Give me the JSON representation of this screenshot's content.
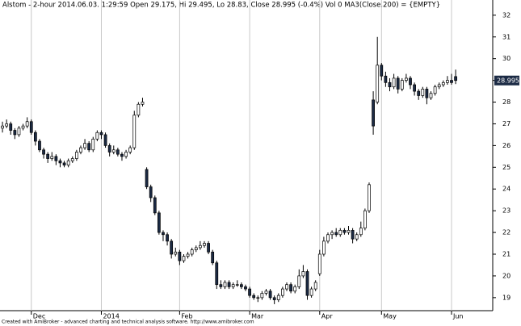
{
  "chart_data": {
    "type": "candlestick",
    "title": "Alstom - 2-hour 2014.06.03. 1:29:59 Open 29.175, Hi 29.495, Lo 28.83, Close 28.995 (-0.4%) Vol 0 MA3(Close,200) = {EMPTY}",
    "footer": "Created with AmiBroker - advanced charting and technical analysis software. http://www.amibroker.com",
    "up_color": "#ffffff",
    "down_color": "#1c2b45",
    "grid": true,
    "xlim": [
      -0.6,
      119
    ],
    "ylim": [
      18.4,
      32.7
    ],
    "yticks": [
      19,
      20,
      21,
      22,
      23,
      24,
      25,
      26,
      27,
      28,
      29,
      30,
      31,
      32
    ],
    "xticks": [
      {
        "value": 7,
        "label": "Dec"
      },
      {
        "value": 24,
        "label": "2014"
      },
      {
        "value": 43,
        "label": "Feb"
      },
      {
        "value": 60,
        "label": "Mar"
      },
      {
        "value": 77,
        "label": "Apr"
      },
      {
        "value": 92,
        "label": "May"
      },
      {
        "value": 109,
        "label": "Jun"
      }
    ],
    "open": [
      26.8,
      26.9,
      27.0,
      26.7,
      26.5,
      26.8,
      26.9,
      27.1,
      26.6,
      26.2,
      25.8,
      25.6,
      25.4,
      25.5,
      25.3,
      25.2,
      25.1,
      25.3,
      25.4,
      25.7,
      25.9,
      26.1,
      25.8,
      26.3,
      26.6,
      26.5,
      26.0,
      25.7,
      25.8,
      25.6,
      25.5,
      25.7,
      25.9,
      27.4,
      27.9,
      24.9,
      24.1,
      23.6,
      22.9,
      22.0,
      21.9,
      21.6,
      21.0,
      21.1,
      20.7,
      20.9,
      21.0,
      21.2,
      21.3,
      21.4,
      21.5,
      21.1,
      20.6,
      19.6,
      19.5,
      19.7,
      19.5,
      19.6,
      19.6,
      19.5,
      19.4,
      19.1,
      19.0,
      19.0,
      19.2,
      19.3,
      19.0,
      18.9,
      19.1,
      19.4,
      19.6,
      19.3,
      19.5,
      20.0,
      20.2,
      19.1,
      19.4,
      20.1,
      21.0,
      21.6,
      21.9,
      22.0,
      21.9,
      22.1,
      22.0,
      22.1,
      21.7,
      21.9,
      22.2,
      23.0,
      28.1,
      28.0,
      29.7,
      29.2,
      28.9,
      28.7,
      29.1,
      28.6,
      29.0,
      29.1,
      28.8,
      28.5,
      28.3,
      28.6,
      28.2,
      28.4,
      28.7,
      28.8,
      28.9,
      29.0,
      29.175
    ],
    "high": [
      27.1,
      27.2,
      27.1,
      26.8,
      26.9,
      27.0,
      27.3,
      27.2,
      26.7,
      26.3,
      25.9,
      25.7,
      25.7,
      25.6,
      25.4,
      25.3,
      25.4,
      25.5,
      25.8,
      26.0,
      26.3,
      26.2,
      26.4,
      26.7,
      26.7,
      26.6,
      26.1,
      26.0,
      25.9,
      25.7,
      25.8,
      26.0,
      27.6,
      28.0,
      28.2,
      25.0,
      24.2,
      23.7,
      23.0,
      22.1,
      22.0,
      21.7,
      21.3,
      21.2,
      21.0,
      21.1,
      21.3,
      21.4,
      21.6,
      21.6,
      21.6,
      21.2,
      20.7,
      19.8,
      19.8,
      19.8,
      19.7,
      19.8,
      19.7,
      19.6,
      19.5,
      19.2,
      19.1,
      19.3,
      19.4,
      19.4,
      19.1,
      19.2,
      19.5,
      19.7,
      19.7,
      19.6,
      20.3,
      20.5,
      20.3,
      19.5,
      19.8,
      21.2,
      21.8,
      22.0,
      22.1,
      22.2,
      22.2,
      22.2,
      22.3,
      22.2,
      22.0,
      22.5,
      23.1,
      24.3,
      28.5,
      31.0,
      29.8,
      29.4,
      29.1,
      29.3,
      29.2,
      29.1,
      29.3,
      29.2,
      28.9,
      28.6,
      28.7,
      28.7,
      28.5,
      28.8,
      28.9,
      29.0,
      29.2,
      29.3,
      29.495
    ],
    "low": [
      26.6,
      26.8,
      26.5,
      26.3,
      26.4,
      26.7,
      26.8,
      26.5,
      26.0,
      25.7,
      25.4,
      25.2,
      25.3,
      25.1,
      25.0,
      25.0,
      25.0,
      25.2,
      25.3,
      25.6,
      25.8,
      25.7,
      25.7,
      26.2,
      26.3,
      25.9,
      25.5,
      25.6,
      25.5,
      25.3,
      25.4,
      25.6,
      25.8,
      27.3,
      27.8,
      24.0,
      23.4,
      22.8,
      21.9,
      21.6,
      21.4,
      20.8,
      20.9,
      20.5,
      20.6,
      20.8,
      20.9,
      21.1,
      21.2,
      21.3,
      21.0,
      20.5,
      19.4,
      19.4,
      19.4,
      19.4,
      19.4,
      19.5,
      19.4,
      19.3,
      19.0,
      18.9,
      18.8,
      18.9,
      19.1,
      18.9,
      18.7,
      18.8,
      19.0,
      19.3,
      19.2,
      19.2,
      19.4,
      19.9,
      18.9,
      19.0,
      19.3,
      20.0,
      20.9,
      21.5,
      21.7,
      21.8,
      21.8,
      21.9,
      21.9,
      21.5,
      21.6,
      21.8,
      22.1,
      22.9,
      26.5,
      27.9,
      29.0,
      28.7,
      28.5,
      28.6,
      28.4,
      28.5,
      28.9,
      28.6,
      28.3,
      28.1,
      28.2,
      27.9,
      28.1,
      28.3,
      28.6,
      28.7,
      28.8,
      28.8,
      28.83
    ],
    "close": [
      26.9,
      27.0,
      26.7,
      26.5,
      26.8,
      26.9,
      27.1,
      26.6,
      26.2,
      25.8,
      25.6,
      25.4,
      25.5,
      25.3,
      25.2,
      25.1,
      25.3,
      25.4,
      25.7,
      25.9,
      26.1,
      25.8,
      26.3,
      26.6,
      26.5,
      26.0,
      25.7,
      25.8,
      25.6,
      25.5,
      25.7,
      25.9,
      27.4,
      27.9,
      28.0,
      24.1,
      23.6,
      22.9,
      22.0,
      21.9,
      21.6,
      21.0,
      21.1,
      20.7,
      20.9,
      21.0,
      21.2,
      21.3,
      21.4,
      21.5,
      21.1,
      20.6,
      19.6,
      19.5,
      19.7,
      19.5,
      19.6,
      19.6,
      19.5,
      19.4,
      19.1,
      19.0,
      19.0,
      19.2,
      19.3,
      19.0,
      18.9,
      19.1,
      19.4,
      19.6,
      19.3,
      19.5,
      20.0,
      20.2,
      19.1,
      19.4,
      19.7,
      21.0,
      21.6,
      21.9,
      22.0,
      21.9,
      22.1,
      22.0,
      22.1,
      21.7,
      21.9,
      22.2,
      23.0,
      24.2,
      26.9,
      29.7,
      29.2,
      28.9,
      28.7,
      29.1,
      28.6,
      29.0,
      29.1,
      28.8,
      28.5,
      28.3,
      28.6,
      28.2,
      28.4,
      28.7,
      28.8,
      28.9,
      29.0,
      28.9,
      28.995
    ]
  }
}
